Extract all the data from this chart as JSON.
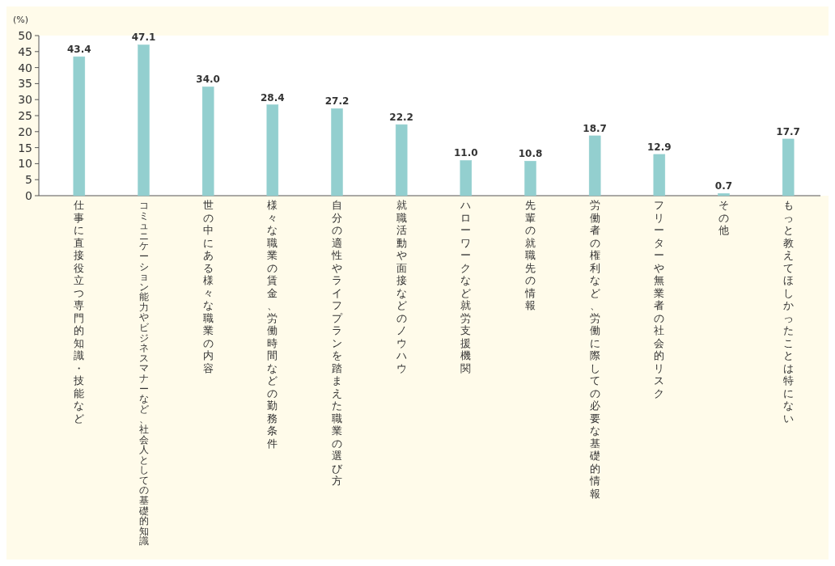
{
  "chart_data": {
    "type": "bar",
    "ylabel": "(%)",
    "categories": [
      "仕事に直接役立つ専門的知識・技能など",
      "コミュニケーション能力やビジネスマナーなど、社会人としての基礎的知識",
      "世の中にある様々な職業の内容",
      "様々な職業の賃金、労働時間などの勤務条件",
      "自分の適性やライフプランを踏まえた職業の選び方",
      "就職活動や面接などのノウハウ",
      "ハローワークなど就労支援機関",
      "先輩の就職先の情報",
      "労働者の権利など、労働に際しての必要な基礎的情報",
      "フリーターや無業者の社会的リスク",
      "その他",
      "もっと教えてほしかったことは特にない"
    ],
    "values": [
      43.4,
      47.1,
      34.0,
      28.4,
      27.2,
      22.2,
      11.0,
      10.8,
      18.7,
      12.9,
      0.7,
      17.7
    ],
    "value_labels": [
      "43.4",
      "47.1",
      "34.0",
      "28.4",
      "27.2",
      "22.2",
      "11.0",
      "10.8",
      "18.7",
      "12.9",
      "0.7",
      "17.7"
    ],
    "color": "#93cfcf",
    "ylim": [
      0,
      50
    ],
    "yticks": [
      0,
      5,
      10,
      15,
      20,
      25,
      30,
      35,
      40,
      45,
      50
    ],
    "grid": false
  }
}
